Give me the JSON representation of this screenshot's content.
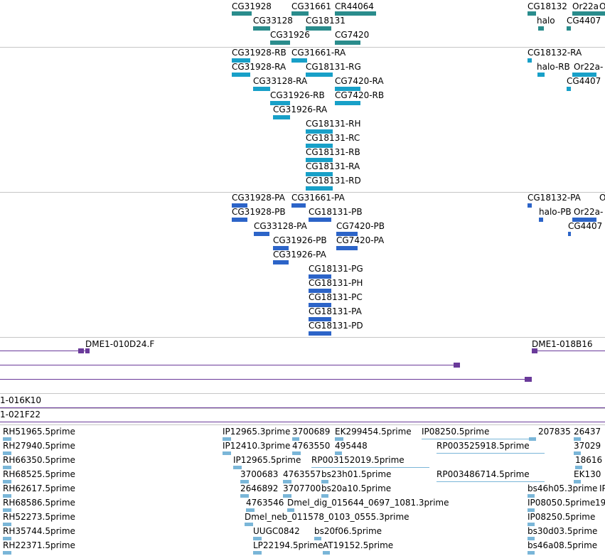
{
  "tracks": {
    "genes": {
      "labels": [
        "CG31928",
        "CG31661",
        "CR44064",
        "CG18132",
        "Or22a",
        "O",
        "CG33128",
        "CG18131",
        "halo",
        "CG4407",
        "CG31926",
        "CG7420"
      ]
    },
    "transcripts": {
      "labels": [
        "CG31928-RB",
        "CG31661-RA",
        "CG18132-RA",
        "CG31928-RA",
        "CG18131-RG",
        "halo-RB",
        "Or22a-",
        "CG33128-RA",
        "CG7420-RA",
        "CG4407",
        "CG31926-RB",
        "CG7420-RB",
        "CG31926-RA",
        "CG18131-RH",
        "CG18131-RC",
        "CG18131-RB",
        "CG18131-RA",
        "CG18131-RD"
      ]
    },
    "proteins": {
      "labels": [
        "CG31928-PA",
        "CG31661-PA",
        "CG18132-PA",
        "O",
        "CG31928-PB",
        "CG18131-PB",
        "halo-PB",
        "Or22a-",
        "CG33128-PA",
        "CG7420-PB",
        "CG4407",
        "CG31926-PB",
        "CG7420-PA",
        "CG31926-PA",
        "CG18131-PG",
        "CG18131-PH",
        "CG18131-PC",
        "CG18131-PA",
        "CG18131-PD"
      ]
    },
    "clones": {
      "labels": [
        "DME1-010D24.F",
        "DME1-018B16"
      ]
    },
    "clone_rows": {
      "labels": [
        "1-016K10",
        "1-021F22"
      ]
    },
    "ests": {
      "labels": [
        "RH51965.5prime",
        "IP12965.3prime",
        "3700689",
        "EK299454.5prime",
        "IP08250.5prime",
        "207835",
        "26437",
        "RH27940.5prime",
        "IP12410.3prime",
        "4763550",
        "495448",
        "RP003525918.5prime",
        "37029",
        "RH66350.5prime",
        "IP12965.5prime",
        "RP003152019.5prime",
        "18616",
        "RH68525.5prime",
        "3700683",
        "4763557",
        "bs23h01.5prime",
        "RP003486714.5prime",
        "EK130",
        "RH62617.5prime",
        "2646892",
        "3707700",
        "bs20a10.5prime",
        "bs46h05.3prime",
        "IP",
        "RH68586.5prime",
        "4763546",
        "Dmel_dig_015644_0697_1081.3prime",
        "IP08050.5prime",
        "19",
        "RH52273.5prime",
        "Dmel_neb_011578_0103_0555.3prime",
        "IP08250.5prime",
        "RH35744.5prime",
        "UUGC0842",
        "bs20f06.5prime",
        "bs30d03.5prime",
        "RH22371.5prime",
        "LP22194.5prime",
        "AT19152.5prime",
        "bs46a08.5prime"
      ]
    }
  },
  "colors": {
    "gene": "#2a8c8c",
    "transcript": "#18a0c8",
    "protein": "#2c64c8",
    "clone": "#6a3a9a",
    "est": "#7ab6d8",
    "separator": "#c6c6c6"
  }
}
